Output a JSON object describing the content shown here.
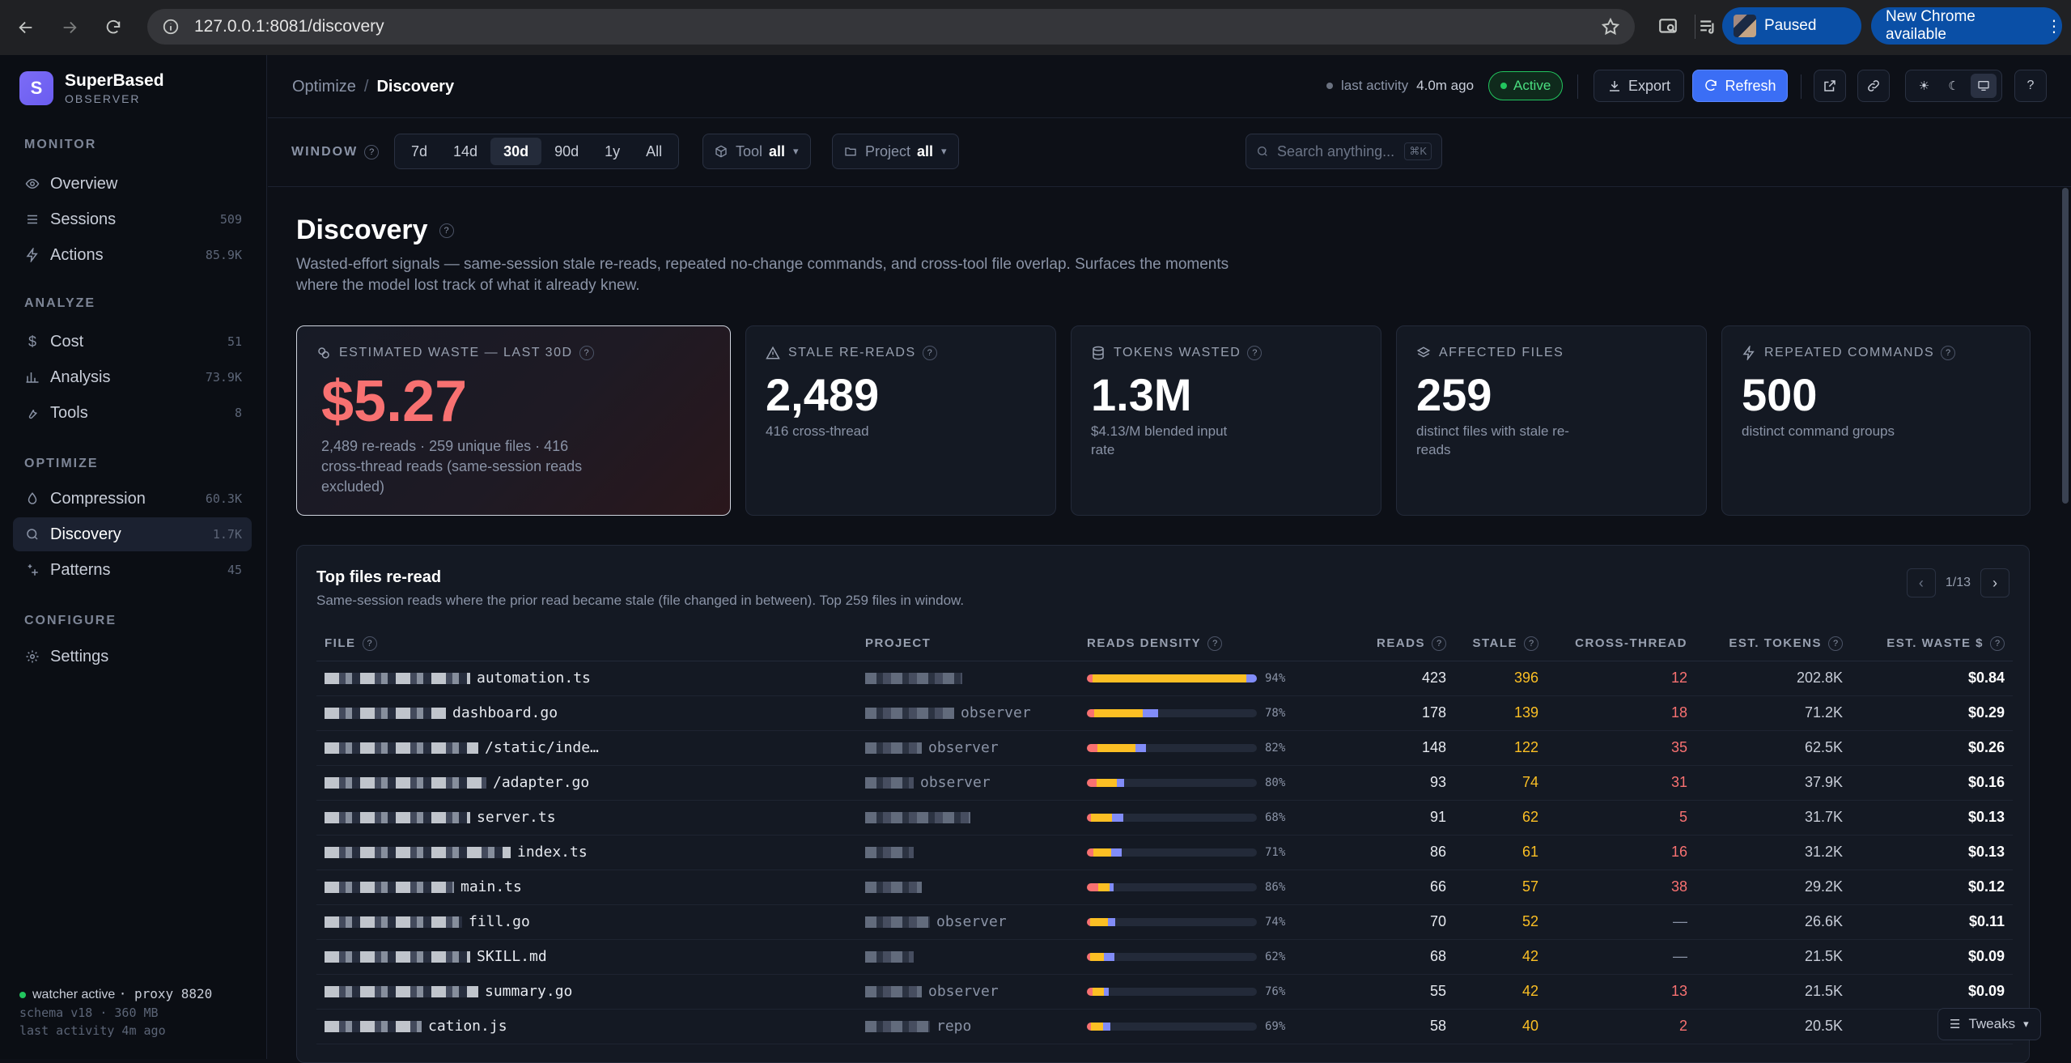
{
  "browser": {
    "url": "127.0.0.1:8081/discovery",
    "profile_label": "Paused",
    "update_label": "New Chrome available"
  },
  "brand": {
    "name": "SuperBased",
    "tagline": "OBSERVER",
    "initial": "S"
  },
  "sidebar": {
    "sections": [
      {
        "title": "MONITOR",
        "items": [
          {
            "label": "Overview",
            "count": "",
            "icon": "eye-icon"
          },
          {
            "label": "Sessions",
            "count": "509",
            "icon": "list-icon"
          },
          {
            "label": "Actions",
            "count": "85.9K",
            "icon": "bolt-icon"
          }
        ]
      },
      {
        "title": "ANALYZE",
        "items": [
          {
            "label": "Cost",
            "count": "51",
            "icon": "dollar-icon"
          },
          {
            "label": "Analysis",
            "count": "73.9K",
            "icon": "bar-chart-icon"
          },
          {
            "label": "Tools",
            "count": "8",
            "icon": "wrench-icon"
          }
        ]
      },
      {
        "title": "OPTIMIZE",
        "items": [
          {
            "label": "Compression",
            "count": "60.3K",
            "icon": "droplet-icon"
          },
          {
            "label": "Discovery",
            "count": "1.7K",
            "icon": "search-icon",
            "active": true
          },
          {
            "label": "Patterns",
            "count": "45",
            "icon": "sparkle-icon"
          }
        ]
      },
      {
        "title": "CONFIGURE",
        "items": [
          {
            "label": "Settings",
            "count": "",
            "icon": "gear-icon"
          }
        ]
      }
    ],
    "footer": {
      "status": "watcher active",
      "proxy": "· proxy 8820",
      "schema": "schema v18 · 360 MB",
      "last": "last activity 4m ago"
    }
  },
  "header": {
    "breadcrumb_parent": "Optimize",
    "breadcrumb_sep": "/",
    "breadcrumb_current": "Discovery",
    "last_activity_label": "last activity",
    "last_activity_value": "4.0m ago",
    "status_badge": "Active",
    "export_label": "Export",
    "refresh_label": "Refresh"
  },
  "filters": {
    "window_label": "WINDOW",
    "window_options": [
      "7d",
      "14d",
      "30d",
      "90d",
      "1y",
      "All"
    ],
    "window_selected": "30d",
    "tool_label": "Tool",
    "tool_value": "all",
    "project_label": "Project",
    "project_value": "all",
    "search_placeholder": "Search anything...",
    "search_shortcut": "⌘K"
  },
  "page": {
    "title": "Discovery",
    "description": "Wasted-effort signals — same-session stale re-reads, repeated no-change commands, and cross-tool file overlap. Surfaces the moments where the model lost track of what it already knew."
  },
  "cards": {
    "waste": {
      "label": "ESTIMATED WASTE — LAST 30D",
      "value": "$5.27",
      "sub": "2,489 re-reads · 259 unique files · 416 cross-thread reads (same-session reads excluded)"
    },
    "stale": {
      "label": "STALE RE-READS",
      "value": "2,489",
      "sub": "416 cross-thread"
    },
    "tokens": {
      "label": "TOKENS WASTED",
      "value": "1.3M",
      "sub": "$4.13/M blended input rate"
    },
    "files": {
      "label": "AFFECTED FILES",
      "value": "259",
      "sub": "distinct files with stale re-reads"
    },
    "commands": {
      "label": "REPEATED COMMANDS",
      "value": "500",
      "sub": "distinct command groups"
    }
  },
  "table": {
    "title": "Top files re-read",
    "subtitle": "Same-session reads where the prior read became stale (file changed in between). Top 259 files in window.",
    "pager": "1/13",
    "columns": [
      "FILE",
      "PROJECT",
      "READS DENSITY",
      "READS",
      "STALE",
      "CROSS-THREAD",
      "EST. TOKENS",
      "EST. WASTE $"
    ],
    "rows": [
      {
        "file": "automation.ts",
        "project": "",
        "density": 0.94,
        "pct": "94%",
        "reads": "423",
        "stale": "396",
        "cross": "12",
        "tokens": "202.8K",
        "waste": "$0.84"
      },
      {
        "file": "dashboard.go",
        "project": "observer",
        "density": 0.78,
        "pct": "78%",
        "reads": "178",
        "stale": "139",
        "cross": "18",
        "tokens": "71.2K",
        "waste": "$0.29"
      },
      {
        "file": "/static/inde…",
        "project": "observer",
        "density": 0.82,
        "pct": "82%",
        "reads": "148",
        "stale": "122",
        "cross": "35",
        "tokens": "62.5K",
        "waste": "$0.26"
      },
      {
        "file": "/adapter.go",
        "project": "observer",
        "density": 0.8,
        "pct": "80%",
        "reads": "93",
        "stale": "74",
        "cross": "31",
        "tokens": "37.9K",
        "waste": "$0.16"
      },
      {
        "file": "server.ts",
        "project": "",
        "density": 0.68,
        "pct": "68%",
        "reads": "91",
        "stale": "62",
        "cross": "5",
        "tokens": "31.7K",
        "waste": "$0.13"
      },
      {
        "file": "index.ts",
        "project": "",
        "density": 0.71,
        "pct": "71%",
        "reads": "86",
        "stale": "61",
        "cross": "16",
        "tokens": "31.2K",
        "waste": "$0.13"
      },
      {
        "file": "main.ts",
        "project": "",
        "density": 0.86,
        "pct": "86%",
        "reads": "66",
        "stale": "57",
        "cross": "38",
        "tokens": "29.2K",
        "waste": "$0.12"
      },
      {
        "file": "fill.go",
        "project": "observer",
        "density": 0.74,
        "pct": "74%",
        "reads": "70",
        "stale": "52",
        "cross": "—",
        "tokens": "26.6K",
        "waste": "$0.11"
      },
      {
        "file": "SKILL.md",
        "project": "",
        "density": 0.62,
        "pct": "62%",
        "reads": "68",
        "stale": "42",
        "cross": "—",
        "tokens": "21.5K",
        "waste": "$0.09"
      },
      {
        "file": "summary.go",
        "project": "observer",
        "density": 0.76,
        "pct": "76%",
        "reads": "55",
        "stale": "42",
        "cross": "13",
        "tokens": "21.5K",
        "waste": "$0.09"
      },
      {
        "file": "cation.js",
        "project": "repo",
        "density": 0.69,
        "pct": "69%",
        "reads": "58",
        "stale": "40",
        "cross": "2",
        "tokens": "20.5K",
        "waste": "$0.08"
      }
    ]
  },
  "tweaks_label": "Tweaks",
  "colors": {
    "accent": "#3b6ef5",
    "waste": "#f87171",
    "stale": "#fbbf24",
    "cross": "#f87171",
    "active": "#22c55e"
  }
}
